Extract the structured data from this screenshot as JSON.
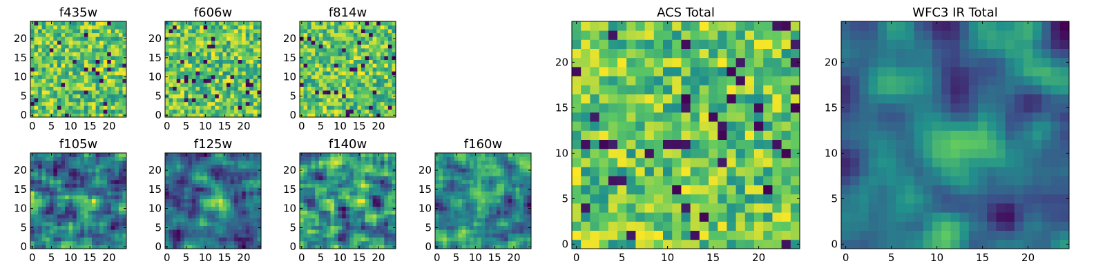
{
  "figure_title": "",
  "colors": {
    "colormap": [
      "#440154",
      "#3b528b",
      "#21918c",
      "#5ec962",
      "#fde725"
    ]
  },
  "chart_data": [
    {
      "type": "heatmap",
      "title": "f435w",
      "grid": [
        25,
        25
      ],
      "xlim": [
        0,
        24
      ],
      "ylim": [
        0,
        24
      ],
      "x_ticks": [
        0,
        5,
        10,
        15,
        20
      ],
      "y_ticks": [
        0,
        5,
        10,
        15,
        20
      ],
      "xlabel": "",
      "ylabel": "",
      "colormap": "viridis",
      "pixel_values": "noisy field, mostly green-yellow with scattered dark pixels"
    },
    {
      "type": "heatmap",
      "title": "f606w",
      "grid": [
        25,
        25
      ],
      "xlim": [
        0,
        24
      ],
      "ylim": [
        0,
        24
      ],
      "x_ticks": [
        0,
        5,
        10,
        15,
        20
      ],
      "y_ticks": [
        0,
        5,
        10,
        15,
        20
      ],
      "xlabel": "",
      "ylabel": "",
      "colormap": "viridis",
      "pixel_values": "noisy field"
    },
    {
      "type": "heatmap",
      "title": "f814w",
      "grid": [
        25,
        25
      ],
      "xlim": [
        0,
        24
      ],
      "ylim": [
        0,
        24
      ],
      "x_ticks": [
        0,
        5,
        10,
        15,
        20
      ],
      "y_ticks": [
        0,
        5,
        10,
        15,
        20
      ],
      "xlabel": "",
      "ylabel": "",
      "colormap": "viridis",
      "pixel_values": "noisy field"
    },
    {
      "type": "heatmap",
      "title": "f105w",
      "grid": [
        25,
        25
      ],
      "xlim": [
        0,
        24
      ],
      "ylim": [
        0,
        24
      ],
      "x_ticks": [
        0,
        5,
        10,
        15,
        20
      ],
      "y_ticks": [
        0,
        5,
        10,
        15,
        20
      ],
      "xlabel": "",
      "ylabel": "",
      "colormap": "viridis",
      "pixel_values": "smooth correlated noise"
    },
    {
      "type": "heatmap",
      "title": "f125w",
      "grid": [
        25,
        25
      ],
      "xlim": [
        0,
        24
      ],
      "ylim": [
        0,
        24
      ],
      "x_ticks": [
        0,
        5,
        10,
        15,
        20
      ],
      "y_ticks": [
        0,
        5,
        10,
        15,
        20
      ],
      "xlabel": "",
      "ylabel": "",
      "colormap": "viridis",
      "pixel_values": "smooth correlated noise, bright center"
    },
    {
      "type": "heatmap",
      "title": "f140w",
      "grid": [
        25,
        25
      ],
      "xlim": [
        0,
        24
      ],
      "ylim": [
        0,
        24
      ],
      "x_ticks": [
        0,
        5,
        10,
        15,
        20
      ],
      "y_ticks": [
        0,
        5,
        10,
        15,
        20
      ],
      "xlabel": "",
      "ylabel": "",
      "colormap": "viridis",
      "pixel_values": "smooth correlated noise"
    },
    {
      "type": "heatmap",
      "title": "f160w",
      "grid": [
        25,
        25
      ],
      "xlim": [
        0,
        24
      ],
      "ylim": [
        0,
        24
      ],
      "x_ticks": [
        0,
        5,
        10,
        15,
        20
      ],
      "y_ticks": [
        0,
        5,
        10,
        15,
        20
      ],
      "xlabel": "",
      "ylabel": "",
      "colormap": "viridis",
      "pixel_values": "smooth correlated noise, darker overall"
    },
    {
      "type": "heatmap",
      "title": "ACS Total",
      "grid": [
        25,
        25
      ],
      "xlim": [
        0,
        24
      ],
      "ylim": [
        0,
        24
      ],
      "x_ticks": [
        0,
        5,
        10,
        15,
        20
      ],
      "y_ticks": [
        0,
        5,
        10,
        15,
        20
      ],
      "xlabel": "",
      "ylabel": "",
      "colormap": "viridis",
      "pixel_values": "combined noisy field"
    },
    {
      "type": "heatmap",
      "title": "WFC3 IR Total",
      "grid": [
        25,
        25
      ],
      "xlim": [
        0,
        24
      ],
      "ylim": [
        0,
        24
      ],
      "x_ticks": [
        0,
        5,
        10,
        15,
        20
      ],
      "y_ticks": [
        0,
        5,
        10,
        15,
        20
      ],
      "xlabel": "",
      "ylabel": "",
      "colormap": "viridis",
      "pixel_values": "combined smooth field, bright blob near center"
    }
  ]
}
